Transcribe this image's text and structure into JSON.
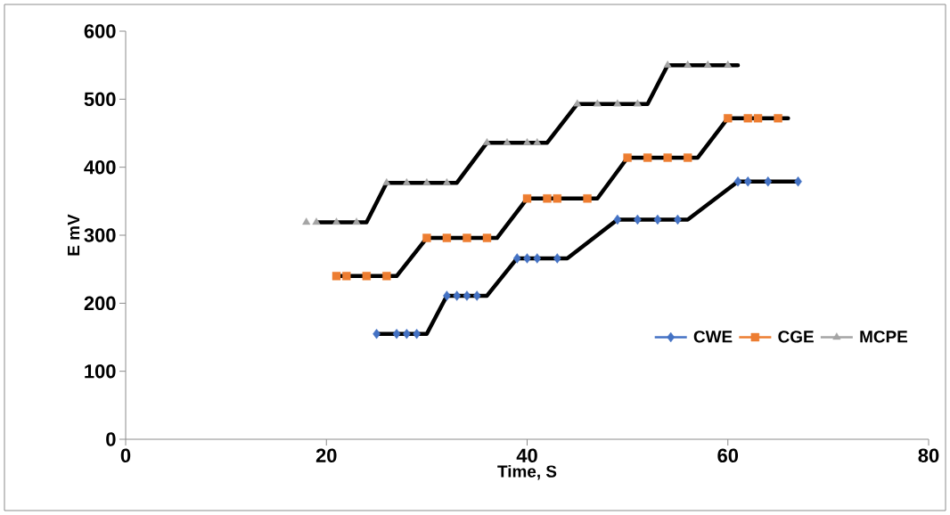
{
  "chart_data": {
    "type": "scatter",
    "xlabel": "Time, S",
    "ylabel": "E mV",
    "xlim": [
      0,
      80
    ],
    "xticks": [
      0,
      20,
      40,
      60,
      80
    ],
    "ylim": [
      0,
      600
    ],
    "yticks": [
      0,
      100,
      200,
      300,
      400,
      500,
      600
    ],
    "legend": "right",
    "series": [
      {
        "name": "CWE",
        "color": "#4472c4",
        "marker": "diamond",
        "x": [
          25,
          27,
          28,
          29,
          32,
          33,
          34,
          35,
          39,
          40,
          41,
          43,
          49,
          51,
          53,
          55,
          61,
          62,
          64,
          67
        ],
        "values": [
          155,
          155,
          155,
          155,
          211,
          211,
          211,
          211,
          266,
          266,
          266,
          266,
          323,
          323,
          323,
          323,
          379,
          379,
          379,
          379
        ]
      },
      {
        "name": "CGE",
        "color": "#ed7d31",
        "marker": "square",
        "x": [
          21,
          22,
          24,
          26,
          30,
          32,
          34,
          36,
          40,
          42,
          43,
          46,
          50,
          52,
          54,
          56,
          60,
          62,
          63,
          65
        ],
        "values": [
          240,
          240,
          240,
          240,
          296,
          296,
          296,
          296,
          354,
          354,
          354,
          354,
          414,
          414,
          414,
          414,
          472,
          472,
          472,
          472
        ]
      },
      {
        "name": "MCPE",
        "color": "#a5a5a5",
        "marker": "triangle",
        "x": [
          18,
          19,
          21,
          23,
          26,
          28,
          30,
          32,
          36,
          38,
          40,
          41,
          45,
          47,
          49,
          51,
          54,
          56,
          58,
          60
        ],
        "values": [
          319,
          319,
          319,
          319,
          377,
          377,
          377,
          377,
          436,
          436,
          436,
          436,
          493,
          493,
          493,
          493,
          550,
          550,
          550,
          550
        ]
      },
      {
        "type": "line",
        "color": "#000000",
        "marker": "none",
        "x": [
          25,
          30,
          32,
          36,
          39,
          44,
          49,
          56,
          61,
          67
        ],
        "values": [
          155,
          155,
          211,
          211,
          266,
          266,
          323,
          323,
          379,
          379
        ]
      },
      {
        "type": "line",
        "color": "#000000",
        "marker": "none",
        "x": [
          21,
          27,
          30,
          37,
          40,
          47,
          50,
          57,
          60,
          66
        ],
        "values": [
          240,
          240,
          296,
          296,
          354,
          354,
          414,
          414,
          472,
          472
        ]
      },
      {
        "type": "line",
        "color": "#000000",
        "marker": "none",
        "x": [
          19,
          24,
          26,
          33,
          36,
          42,
          45,
          52,
          54,
          61
        ],
        "values": [
          319,
          319,
          377,
          377,
          436,
          436,
          493,
          493,
          550,
          550
        ]
      }
    ]
  }
}
